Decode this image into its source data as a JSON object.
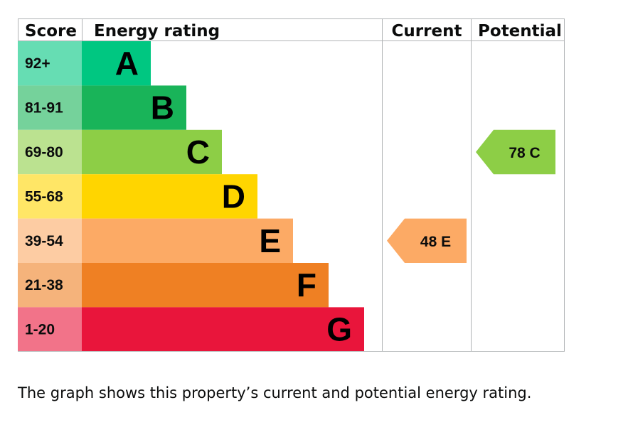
{
  "headers": {
    "score": "Score",
    "energy_rating": "Energy rating",
    "current": "Current",
    "potential": "Potential"
  },
  "chart_data": {
    "type": "bar",
    "categories": [
      "A",
      "B",
      "C",
      "D",
      "E",
      "F",
      "G"
    ],
    "score_ranges": [
      "92+",
      "81-91",
      "69-80",
      "55-68",
      "39-54",
      "21-38",
      "1-20"
    ],
    "band_colors": [
      "#00c781",
      "#19b459",
      "#8dce46",
      "#ffd500",
      "#fcaa65",
      "#ef8023",
      "#e9153b"
    ],
    "score_colors": [
      "#66ddb3",
      "#75d29b",
      "#bbe290",
      "#ffe666",
      "#fdcca3",
      "#f5b37b",
      "#f27389"
    ],
    "current": {
      "score": 48,
      "band": "E",
      "label": "48 E"
    },
    "potential": {
      "score": 78,
      "band": "C",
      "label": "78 C"
    }
  },
  "caption": "The graph shows this property’s current and potential energy rating."
}
